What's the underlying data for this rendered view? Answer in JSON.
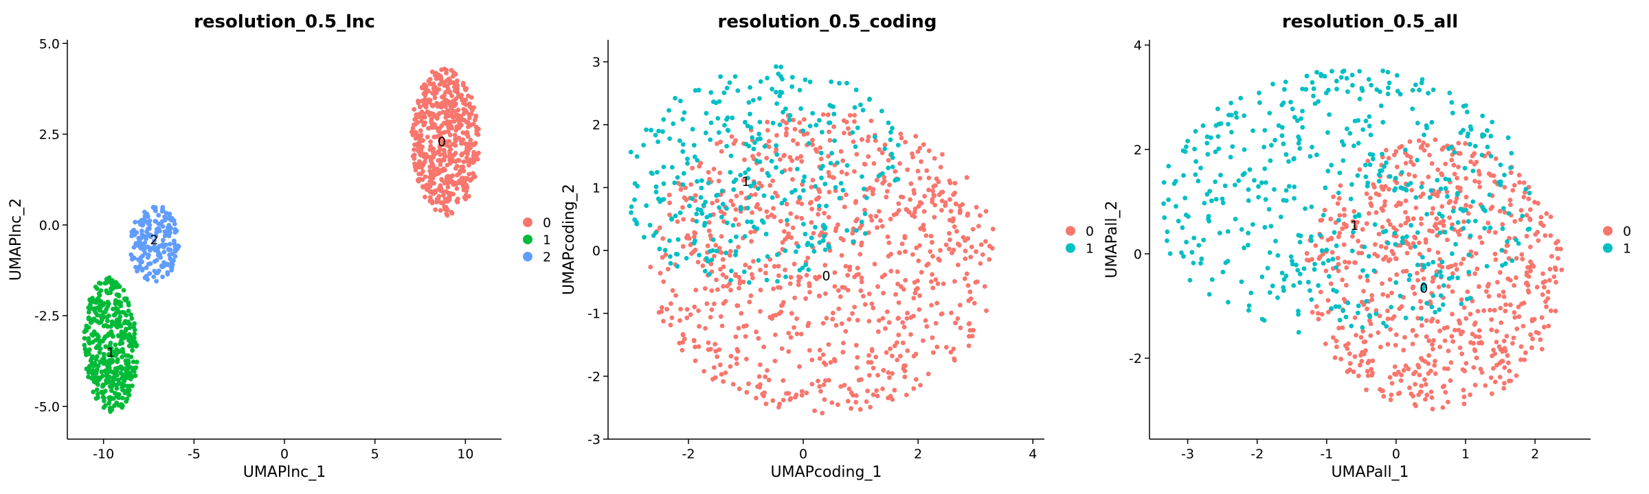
{
  "chart_data": [
    {
      "type": "scatter",
      "title": "resolution_0.5_lnc",
      "xlabel": "UMAPlnc_1",
      "ylabel": "UMAPlnc_2",
      "xlim": [
        -12,
        12
      ],
      "ylim": [
        -5.9,
        5.1
      ],
      "xticks": [
        -10,
        -5,
        0,
        5,
        10
      ],
      "xtick_labels": [
        "-10",
        "-5",
        "0",
        "5",
        "10"
      ],
      "yticks": [
        -5,
        -2.5,
        0,
        2.5,
        5
      ],
      "ytick_labels": [
        "-5.0",
        "-2.5",
        "0.0",
        "2.5",
        "5.0"
      ],
      "legend": [
        "0",
        "1",
        "2"
      ],
      "colors": [
        "#F8766D",
        "#00BA38",
        "#619CFF"
      ],
      "clusters": [
        {
          "label": "0",
          "color": "#F8766D",
          "label_at": [
            8.7,
            2.3
          ],
          "region": {
            "type": "ellipse",
            "cx": 8.9,
            "cy": 2.3,
            "rx": 1.9,
            "ry": 2.1,
            "angle": 0.35
          },
          "n": 560
        },
        {
          "label": "1",
          "color": "#00BA38",
          "label_at": [
            -9.6,
            -3.5
          ],
          "region": {
            "type": "ellipse",
            "cx": -9.6,
            "cy": -3.3,
            "rx": 1.5,
            "ry": 1.9,
            "angle": 0.15
          },
          "n": 430
        },
        {
          "label": "2",
          "color": "#619CFF",
          "label_at": [
            -7.2,
            -0.4
          ],
          "region": {
            "type": "ellipse",
            "cx": -7.2,
            "cy": -0.5,
            "rx": 1.4,
            "ry": 1.1,
            "angle": 0.0
          },
          "n": 190
        }
      ]
    },
    {
      "type": "scatter",
      "title": "resolution_0.5_coding",
      "xlabel": "UMAPcoding_1",
      "ylabel": "UMAPcoding_2",
      "xlim": [
        -3.4,
        4.2
      ],
      "ylim": [
        -3,
        3.35
      ],
      "xticks": [
        -2,
        0,
        2,
        4
      ],
      "xtick_labels": [
        "-2",
        "0",
        "2",
        "4"
      ],
      "yticks": [
        -3,
        -2,
        -1,
        0,
        1,
        2,
        3
      ],
      "ytick_labels": [
        "-3",
        "-2",
        "-1",
        "0",
        "1",
        "2",
        "3"
      ],
      "legend": [
        "0",
        "1"
      ],
      "colors": [
        "#F8766D",
        "#00BFC4"
      ],
      "clusters": [
        {
          "label": "0",
          "color": "#F8766D",
          "label_at": [
            0.4,
            -0.4
          ],
          "region": {
            "type": "ellipse",
            "cx": 0.35,
            "cy": -0.2,
            "rx": 3.1,
            "ry": 2.45,
            "angle": 0.0
          },
          "n": 850
        },
        {
          "label": "1",
          "color": "#00BFC4",
          "label_at": [
            -1.0,
            1.1
          ],
          "region": {
            "type": "ellipse",
            "cx": -0.7,
            "cy": 1.2,
            "rx": 2.5,
            "ry": 1.75,
            "angle": 0.15
          },
          "n": 330
        }
      ]
    },
    {
      "type": "scatter",
      "title": "resolution_0.5_all",
      "xlabel": "UMAPall_1",
      "ylabel": "UMAPall_2",
      "xlim": [
        -3.55,
        2.8
      ],
      "ylim": [
        -3.55,
        4.1
      ],
      "xticks": [
        -3,
        -2,
        -1,
        0,
        1,
        2
      ],
      "xtick_labels": [
        "-3",
        "-2",
        "-1",
        "0",
        "1",
        "2"
      ],
      "yticks": [
        -2,
        0,
        2,
        4
      ],
      "ytick_labels": [
        "-2",
        "0",
        "2",
        "4"
      ],
      "legend": [
        "0",
        "1"
      ],
      "colors": [
        "#F8766D",
        "#00BFC4"
      ],
      "clusters": [
        {
          "label": "0",
          "color": "#F8766D",
          "label_at": [
            0.4,
            -0.65
          ],
          "region": {
            "type": "ellipse",
            "cx": 0.55,
            "cy": -0.4,
            "rx": 1.9,
            "ry": 2.65,
            "angle": 0.0
          },
          "n": 700
        },
        {
          "label": "1",
          "color": "#00BFC4",
          "label_at": [
            -0.6,
            0.55
          ],
          "region": {
            "type": "ellipse",
            "cx": -0.7,
            "cy": 1.0,
            "rx": 2.8,
            "ry": 2.6,
            "angle": 0.3
          },
          "n": 480
        }
      ]
    }
  ]
}
